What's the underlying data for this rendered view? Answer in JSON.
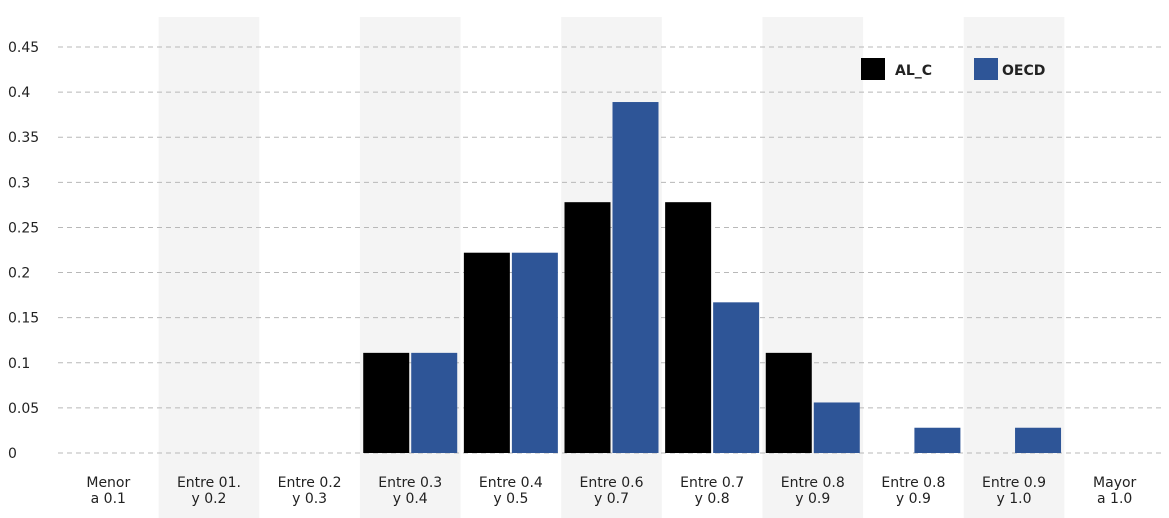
{
  "chart_data": {
    "type": "bar",
    "title": "",
    "xlabel": "",
    "ylabel": "",
    "ylim": [
      0,
      0.45
    ],
    "yticks": [
      "0",
      "0.05",
      "0.1",
      "0.15",
      "0.2",
      "0.25",
      "0.3",
      "0.35",
      "0.4",
      "0.45"
    ],
    "grid": true,
    "legend_position": "top-right",
    "categories": [
      [
        "Menor",
        "a 0.1"
      ],
      [
        "Entre 01.",
        "y 0.2"
      ],
      [
        "Entre 0.2",
        "y 0.3"
      ],
      [
        "Entre 0.3",
        "y 0.4"
      ],
      [
        "Entre 0.4",
        "y 0.5"
      ],
      [
        "Entre 0.6",
        "y 0.7"
      ],
      [
        "Entre 0.7",
        "y 0.8"
      ],
      [
        "Entre 0.8",
        "y 0.9"
      ],
      [
        "Entre 0.8",
        "y 0.9"
      ],
      [
        "Entre 0.9",
        "y 1.0"
      ],
      [
        "Mayor",
        "a 1.0"
      ]
    ],
    "series": [
      {
        "name": "AL_C",
        "color": "#000000",
        "values": [
          0,
          0,
          0,
          0.111,
          0.222,
          0.278,
          0.278,
          0.111,
          0,
          0,
          0
        ]
      },
      {
        "name": "OECD",
        "color": "#2e5597",
        "values": [
          0,
          0,
          0,
          0.111,
          0.222,
          0.389,
          0.167,
          0.056,
          0.028,
          0.028,
          0
        ]
      }
    ],
    "band_color": "#f4f4f4",
    "grid_color": "#b8b8b8"
  }
}
